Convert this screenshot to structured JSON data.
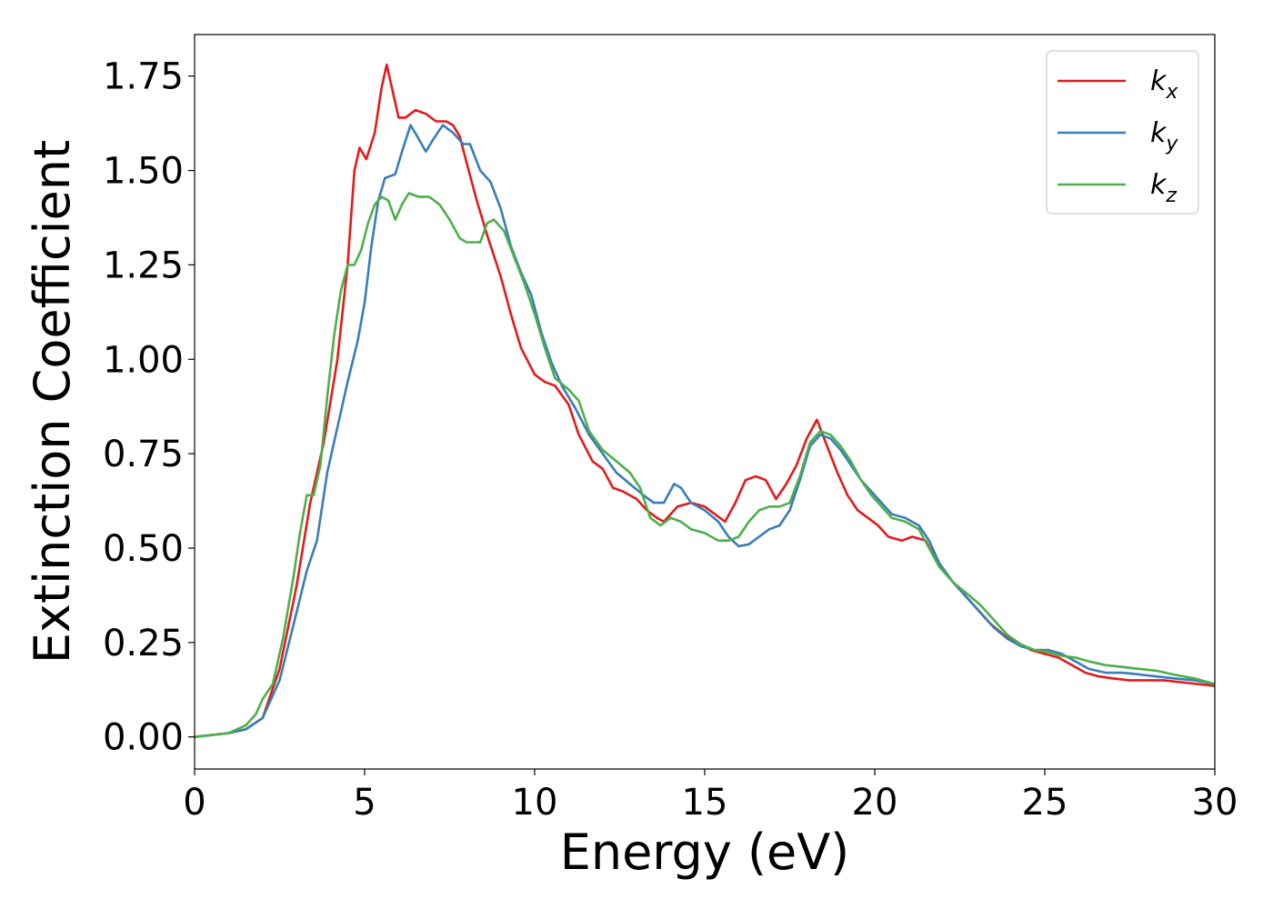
{
  "chart_data": {
    "type": "line",
    "title": "",
    "xlabel": "Energy (eV)",
    "ylabel": "Extinction Coefficient",
    "xlim": [
      0,
      30
    ],
    "ylim": [
      -0.085,
      1.86
    ],
    "xticks": [
      0,
      5,
      10,
      15,
      20,
      25,
      30
    ],
    "yticks": [
      0.0,
      0.25,
      0.5,
      0.75,
      1.0,
      1.25,
      1.5,
      1.75
    ],
    "ytick_labels": [
      "0.00",
      "0.25",
      "0.50",
      "0.75",
      "1.00",
      "1.25",
      "1.50",
      "1.75"
    ],
    "grid": false,
    "legend_position": "top-right",
    "series": [
      {
        "name": "k_x",
        "legend_base": "k",
        "legend_sub": "x",
        "color": "#e41a1c",
        "points": [
          [
            0,
            0
          ],
          [
            1,
            0.01
          ],
          [
            1.5,
            0.02
          ],
          [
            2.0,
            0.05
          ],
          [
            2.5,
            0.18
          ],
          [
            3.0,
            0.4
          ],
          [
            3.4,
            0.62
          ],
          [
            3.8,
            0.78
          ],
          [
            4.2,
            1.0
          ],
          [
            4.5,
            1.25
          ],
          [
            4.7,
            1.5
          ],
          [
            4.85,
            1.56
          ],
          [
            5.05,
            1.53
          ],
          [
            5.3,
            1.6
          ],
          [
            5.5,
            1.72
          ],
          [
            5.65,
            1.78
          ],
          [
            5.8,
            1.72
          ],
          [
            6.0,
            1.64
          ],
          [
            6.2,
            1.64
          ],
          [
            6.5,
            1.66
          ],
          [
            6.8,
            1.65
          ],
          [
            7.1,
            1.63
          ],
          [
            7.4,
            1.63
          ],
          [
            7.6,
            1.62
          ],
          [
            7.8,
            1.59
          ],
          [
            8.0,
            1.52
          ],
          [
            8.3,
            1.42
          ],
          [
            8.6,
            1.33
          ],
          [
            9.0,
            1.22
          ],
          [
            9.3,
            1.12
          ],
          [
            9.6,
            1.03
          ],
          [
            10.0,
            0.96
          ],
          [
            10.3,
            0.94
          ],
          [
            10.6,
            0.93
          ],
          [
            11.0,
            0.88
          ],
          [
            11.3,
            0.8
          ],
          [
            11.7,
            0.73
          ],
          [
            12.0,
            0.71
          ],
          [
            12.3,
            0.66
          ],
          [
            12.6,
            0.65
          ],
          [
            13.0,
            0.63
          ],
          [
            13.3,
            0.6
          ],
          [
            13.6,
            0.58
          ],
          [
            13.8,
            0.57
          ],
          [
            14.2,
            0.61
          ],
          [
            14.6,
            0.62
          ],
          [
            15.0,
            0.61
          ],
          [
            15.3,
            0.59
          ],
          [
            15.6,
            0.57
          ],
          [
            15.9,
            0.62
          ],
          [
            16.2,
            0.68
          ],
          [
            16.5,
            0.69
          ],
          [
            16.8,
            0.68
          ],
          [
            17.1,
            0.63
          ],
          [
            17.4,
            0.67
          ],
          [
            17.7,
            0.72
          ],
          [
            18.0,
            0.79
          ],
          [
            18.3,
            0.84
          ],
          [
            18.6,
            0.77
          ],
          [
            18.9,
            0.7
          ],
          [
            19.2,
            0.64
          ],
          [
            19.5,
            0.6
          ],
          [
            19.8,
            0.58
          ],
          [
            20.1,
            0.56
          ],
          [
            20.4,
            0.53
          ],
          [
            20.8,
            0.52
          ],
          [
            21.1,
            0.53
          ],
          [
            21.5,
            0.52
          ],
          [
            21.8,
            0.47
          ],
          [
            22.2,
            0.42
          ],
          [
            22.6,
            0.38
          ],
          [
            23.0,
            0.34
          ],
          [
            23.4,
            0.3
          ],
          [
            23.8,
            0.27
          ],
          [
            24.2,
            0.25
          ],
          [
            24.6,
            0.23
          ],
          [
            25.0,
            0.22
          ],
          [
            25.4,
            0.21
          ],
          [
            25.8,
            0.19
          ],
          [
            26.2,
            0.17
          ],
          [
            26.6,
            0.16
          ],
          [
            27.0,
            0.155
          ],
          [
            27.5,
            0.15
          ],
          [
            28.0,
            0.15
          ],
          [
            28.5,
            0.15
          ],
          [
            29.0,
            0.145
          ],
          [
            29.5,
            0.14
          ],
          [
            30.0,
            0.135
          ]
        ]
      },
      {
        "name": "k_y",
        "legend_base": "k",
        "legend_sub": "y",
        "color": "#377eb8",
        "points": [
          [
            0,
            0
          ],
          [
            1,
            0.01
          ],
          [
            1.5,
            0.02
          ],
          [
            2.0,
            0.05
          ],
          [
            2.5,
            0.15
          ],
          [
            3.0,
            0.33
          ],
          [
            3.3,
            0.44
          ],
          [
            3.6,
            0.52
          ],
          [
            3.9,
            0.7
          ],
          [
            4.2,
            0.82
          ],
          [
            4.5,
            0.94
          ],
          [
            4.8,
            1.05
          ],
          [
            5.0,
            1.15
          ],
          [
            5.2,
            1.3
          ],
          [
            5.4,
            1.42
          ],
          [
            5.6,
            1.48
          ],
          [
            5.9,
            1.49
          ],
          [
            6.1,
            1.55
          ],
          [
            6.35,
            1.62
          ],
          [
            6.55,
            1.59
          ],
          [
            6.8,
            1.55
          ],
          [
            7.0,
            1.58
          ],
          [
            7.3,
            1.62
          ],
          [
            7.6,
            1.6
          ],
          [
            7.9,
            1.57
          ],
          [
            8.1,
            1.57
          ],
          [
            8.4,
            1.5
          ],
          [
            8.7,
            1.47
          ],
          [
            9.0,
            1.4
          ],
          [
            9.3,
            1.3
          ],
          [
            9.6,
            1.23
          ],
          [
            9.9,
            1.17
          ],
          [
            10.2,
            1.07
          ],
          [
            10.5,
            0.99
          ],
          [
            10.8,
            0.93
          ],
          [
            11.2,
            0.87
          ],
          [
            11.6,
            0.8
          ],
          [
            12.0,
            0.75
          ],
          [
            12.4,
            0.7
          ],
          [
            12.8,
            0.67
          ],
          [
            13.2,
            0.64
          ],
          [
            13.5,
            0.62
          ],
          [
            13.8,
            0.62
          ],
          [
            14.1,
            0.67
          ],
          [
            14.3,
            0.66
          ],
          [
            14.6,
            0.62
          ],
          [
            15.0,
            0.6
          ],
          [
            15.4,
            0.57
          ],
          [
            15.7,
            0.53
          ],
          [
            16.0,
            0.505
          ],
          [
            16.3,
            0.51
          ],
          [
            16.6,
            0.53
          ],
          [
            16.9,
            0.55
          ],
          [
            17.2,
            0.56
          ],
          [
            17.5,
            0.6
          ],
          [
            17.8,
            0.68
          ],
          [
            18.1,
            0.77
          ],
          [
            18.4,
            0.8
          ],
          [
            18.7,
            0.79
          ],
          [
            19.0,
            0.76
          ],
          [
            19.3,
            0.72
          ],
          [
            19.6,
            0.68
          ],
          [
            19.9,
            0.65
          ],
          [
            20.2,
            0.62
          ],
          [
            20.5,
            0.59
          ],
          [
            20.9,
            0.58
          ],
          [
            21.3,
            0.56
          ],
          [
            21.6,
            0.52
          ],
          [
            21.9,
            0.46
          ],
          [
            22.3,
            0.41
          ],
          [
            22.7,
            0.37
          ],
          [
            23.1,
            0.33
          ],
          [
            23.5,
            0.29
          ],
          [
            23.9,
            0.26
          ],
          [
            24.3,
            0.24
          ],
          [
            24.7,
            0.23
          ],
          [
            25.1,
            0.23
          ],
          [
            25.5,
            0.22
          ],
          [
            25.9,
            0.2
          ],
          [
            26.3,
            0.18
          ],
          [
            26.8,
            0.17
          ],
          [
            27.3,
            0.17
          ],
          [
            27.8,
            0.165
          ],
          [
            28.3,
            0.16
          ],
          [
            28.8,
            0.155
          ],
          [
            29.4,
            0.15
          ],
          [
            30.0,
            0.14
          ]
        ]
      },
      {
        "name": "k_z",
        "legend_base": "k",
        "legend_sub": "z",
        "color": "#4daf4a",
        "points": [
          [
            0,
            0
          ],
          [
            1,
            0.01
          ],
          [
            1.5,
            0.03
          ],
          [
            1.8,
            0.06
          ],
          [
            2.0,
            0.1
          ],
          [
            2.3,
            0.14
          ],
          [
            2.6,
            0.26
          ],
          [
            2.9,
            0.42
          ],
          [
            3.1,
            0.54
          ],
          [
            3.3,
            0.64
          ],
          [
            3.5,
            0.64
          ],
          [
            3.7,
            0.72
          ],
          [
            3.9,
            0.9
          ],
          [
            4.1,
            1.06
          ],
          [
            4.3,
            1.18
          ],
          [
            4.5,
            1.25
          ],
          [
            4.7,
            1.25
          ],
          [
            4.9,
            1.29
          ],
          [
            5.1,
            1.36
          ],
          [
            5.3,
            1.41
          ],
          [
            5.5,
            1.43
          ],
          [
            5.7,
            1.42
          ],
          [
            5.9,
            1.37
          ],
          [
            6.1,
            1.41
          ],
          [
            6.3,
            1.44
          ],
          [
            6.6,
            1.43
          ],
          [
            6.9,
            1.43
          ],
          [
            7.2,
            1.41
          ],
          [
            7.5,
            1.37
          ],
          [
            7.8,
            1.32
          ],
          [
            8.0,
            1.31
          ],
          [
            8.2,
            1.31
          ],
          [
            8.4,
            1.31
          ],
          [
            8.6,
            1.36
          ],
          [
            8.8,
            1.37
          ],
          [
            9.1,
            1.34
          ],
          [
            9.4,
            1.27
          ],
          [
            9.7,
            1.2
          ],
          [
            10.0,
            1.12
          ],
          [
            10.3,
            1.03
          ],
          [
            10.6,
            0.95
          ],
          [
            11.0,
            0.92
          ],
          [
            11.3,
            0.89
          ],
          [
            11.6,
            0.81
          ],
          [
            12.0,
            0.76
          ],
          [
            12.4,
            0.73
          ],
          [
            12.8,
            0.7
          ],
          [
            13.1,
            0.66
          ],
          [
            13.4,
            0.58
          ],
          [
            13.7,
            0.56
          ],
          [
            14.0,
            0.58
          ],
          [
            14.3,
            0.57
          ],
          [
            14.6,
            0.55
          ],
          [
            15.0,
            0.54
          ],
          [
            15.4,
            0.52
          ],
          [
            15.7,
            0.52
          ],
          [
            16.0,
            0.53
          ],
          [
            16.3,
            0.57
          ],
          [
            16.6,
            0.6
          ],
          [
            16.9,
            0.61
          ],
          [
            17.2,
            0.61
          ],
          [
            17.5,
            0.62
          ],
          [
            17.8,
            0.69
          ],
          [
            18.1,
            0.78
          ],
          [
            18.4,
            0.81
          ],
          [
            18.7,
            0.8
          ],
          [
            19.0,
            0.77
          ],
          [
            19.3,
            0.73
          ],
          [
            19.6,
            0.68
          ],
          [
            19.9,
            0.64
          ],
          [
            20.2,
            0.61
          ],
          [
            20.5,
            0.58
          ],
          [
            20.9,
            0.57
          ],
          [
            21.3,
            0.55
          ],
          [
            21.6,
            0.5
          ],
          [
            21.9,
            0.45
          ],
          [
            22.3,
            0.41
          ],
          [
            22.7,
            0.38
          ],
          [
            23.1,
            0.35
          ],
          [
            23.5,
            0.31
          ],
          [
            23.9,
            0.27
          ],
          [
            24.3,
            0.245
          ],
          [
            24.7,
            0.23
          ],
          [
            25.1,
            0.225
          ],
          [
            25.5,
            0.215
          ],
          [
            25.9,
            0.21
          ],
          [
            26.3,
            0.2
          ],
          [
            26.8,
            0.19
          ],
          [
            27.3,
            0.185
          ],
          [
            27.8,
            0.18
          ],
          [
            28.3,
            0.175
          ],
          [
            28.8,
            0.165
          ],
          [
            29.4,
            0.155
          ],
          [
            30.0,
            0.14
          ]
        ]
      }
    ]
  }
}
